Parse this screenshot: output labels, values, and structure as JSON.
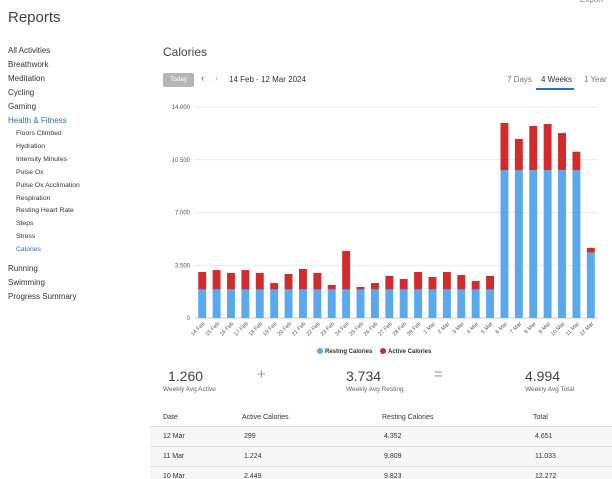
{
  "header": {
    "title": "Reports",
    "export": "Export"
  },
  "nav": {
    "items": [
      "All Activities",
      "Breathwork",
      "Meditation",
      "Cycling",
      "Gaming",
      "Health & Fitness"
    ],
    "health_items": [
      "Floors Climbed",
      "Hydration",
      "Intensity Minutes",
      "Pulse Ox",
      "Pulse Ox Acclimation",
      "Respiration",
      "Resting Heart Rate",
      "Steps",
      "Stress",
      "Calories"
    ],
    "items_after": [
      "Running",
      "Swimming",
      "Progress Summary"
    ]
  },
  "page": {
    "title": "Calories",
    "today": "Today",
    "date_range": "14 Feb - 12 Mar 2024",
    "tabs": [
      "7 Days",
      "4 Weeks",
      "1 Year"
    ]
  },
  "chart_data": {
    "type": "bar",
    "stacked": true,
    "categories": [
      "14 Feb",
      "15 Feb",
      "16 Feb",
      "17 Feb",
      "18 Feb",
      "19 Feb",
      "20 Feb",
      "21 Feb",
      "22 Feb",
      "23 Feb",
      "24 Feb",
      "25 Feb",
      "26 Feb",
      "27 Feb",
      "28 Feb",
      "29 Feb",
      "1 Mar",
      "2 Mar",
      "3 Mar",
      "4 Mar",
      "5 Mar",
      "6 Mar",
      "7 Mar",
      "8 Mar",
      "9 Mar",
      "10 Mar",
      "11 Mar",
      "12 Mar"
    ],
    "series": [
      {
        "name": "Resting Calories",
        "color": "#5aa9ef",
        "values": [
          1900,
          1900,
          1900,
          1900,
          1900,
          1900,
          1900,
          1900,
          1900,
          1900,
          1900,
          1900,
          1900,
          1900,
          1900,
          1900,
          1900,
          1900,
          1900,
          1900,
          1900,
          9810,
          9810,
          9810,
          9810,
          9823,
          9809,
          4352
        ]
      },
      {
        "name": "Active Calories",
        "color": "#d22b2b",
        "values": [
          1150,
          1280,
          1090,
          1280,
          1090,
          420,
          1020,
          1350,
          1090,
          290,
          2550,
          160,
          420,
          890,
          690,
          1150,
          820,
          1150,
          950,
          550,
          890,
          3130,
          2070,
          2930,
          3060,
          2449,
          1224,
          299
        ]
      }
    ],
    "ylim": [
      0,
      14000
    ],
    "yticks": [
      0,
      {
        "value": 3500,
        "label": "3.500"
      },
      {
        "value": 7000,
        "label": "7.000"
      },
      {
        "value": 10500,
        "label": "10.500"
      },
      {
        "value": 14000,
        "label": "14.000"
      }
    ],
    "grid": true,
    "legend": "bottom"
  },
  "stats": [
    {
      "value": "1.260",
      "label": "Weekly Avg Active"
    },
    {
      "value": "3.734",
      "label": "Weekly Avg Resting"
    },
    {
      "value": "4.994",
      "label": "Weekly Avg Total"
    }
  ],
  "operators": [
    "+",
    "="
  ],
  "table": {
    "header": [
      "Date",
      "Active Calories",
      "Resting Calories",
      "Total"
    ],
    "rows": [
      [
        "12 Mar",
        "299",
        "4.352",
        "4.651"
      ],
      [
        "11 Mar",
        "1.224",
        "9.809",
        "11.033"
      ],
      [
        "10 Mar",
        "2.449",
        "9.823",
        "12.272"
      ]
    ]
  }
}
